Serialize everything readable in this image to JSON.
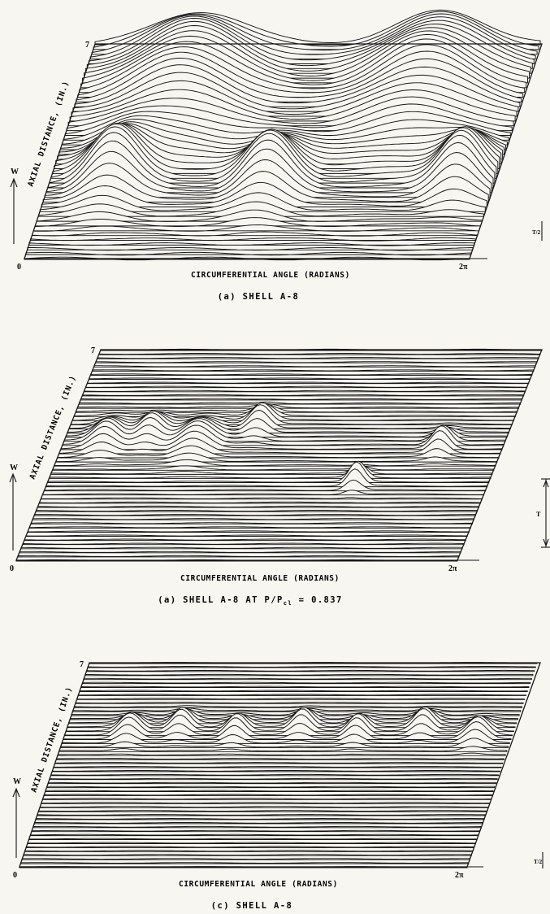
{
  "chart_data": [
    {
      "type": "line",
      "panel": "a",
      "caption": "(a) SHELL A-8",
      "xlabel": "CIRCUMFERENTIAL ANGLE (RADIANS)",
      "ylabel": "AXIAL DISTANCE, (IN.)",
      "zlabel": "W",
      "x_ticks": [
        "0",
        "2π"
      ],
      "xlim": [
        0,
        6.283
      ],
      "y_ticks": [
        "7"
      ],
      "ylim": [
        0,
        7
      ],
      "scale_mark": "T/2",
      "profile_count": 46,
      "features": [
        {
          "x": 1.5,
          "y": 5.8,
          "w": 0.9
        },
        {
          "x": 4.9,
          "y": 5.8,
          "w": 0.9
        },
        {
          "x": 0.9,
          "y": 2.6,
          "w": 0.45
        },
        {
          "x": 3.1,
          "y": 2.5,
          "w": 0.45
        },
        {
          "x": 5.8,
          "y": 2.6,
          "w": 0.4
        }
      ]
    },
    {
      "type": "line",
      "panel": "b",
      "caption": "(a) SHELL A-8 AT P/P_cl = 0.837",
      "caption_parts": {
        "pre": "(a) SHELL A-8 AT P/P",
        "sub": "cl",
        "post": " = 0.837"
      },
      "xlabel": "CIRCUMFERENTIAL ANGLE (RADIANS)",
      "ylabel": "AXIAL DISTANCE, (IN.)",
      "zlabel": "W",
      "x_ticks": [
        "0",
        "2π"
      ],
      "xlim": [
        0,
        6.283
      ],
      "y_ticks": [
        "7"
      ],
      "ylim": [
        0,
        7
      ],
      "scale_mark": "T",
      "profile_count": 52,
      "features": [
        {
          "x": 0.6,
          "y": 4.0,
          "w": 0.25
        },
        {
          "x": 1.2,
          "y": 4.2,
          "w": 0.22
        },
        {
          "x": 1.9,
          "y": 3.9,
          "w": 0.3
        },
        {
          "x": 2.7,
          "y": 4.5,
          "w": 0.2
        },
        {
          "x": 4.4,
          "y": 2.6,
          "w": 0.15
        },
        {
          "x": 5.4,
          "y": 3.8,
          "w": 0.18
        }
      ]
    },
    {
      "type": "line",
      "panel": "c",
      "caption": "(c) SHELL A-8",
      "xlabel": "CIRCUMFERENTIAL ANGLE (RADIANS)",
      "ylabel": "AXIAL DISTANCE, (IN.)",
      "zlabel": "W",
      "x_ticks": [
        "0",
        "2π"
      ],
      "xlim": [
        0,
        6.283
      ],
      "y_ticks": [
        "7"
      ],
      "ylim": [
        0,
        7
      ],
      "scale_mark": "T/2",
      "profile_count": 52,
      "features": [
        {
          "x": 0.9,
          "y": 4.6,
          "w": 0.2
        },
        {
          "x": 1.6,
          "y": 4.8,
          "w": 0.18
        },
        {
          "x": 2.4,
          "y": 4.6,
          "w": 0.18
        },
        {
          "x": 3.3,
          "y": 4.8,
          "w": 0.18
        },
        {
          "x": 4.1,
          "y": 4.6,
          "w": 0.18
        },
        {
          "x": 5.0,
          "y": 4.8,
          "w": 0.18
        },
        {
          "x": 5.8,
          "y": 4.5,
          "w": 0.2
        }
      ]
    }
  ]
}
